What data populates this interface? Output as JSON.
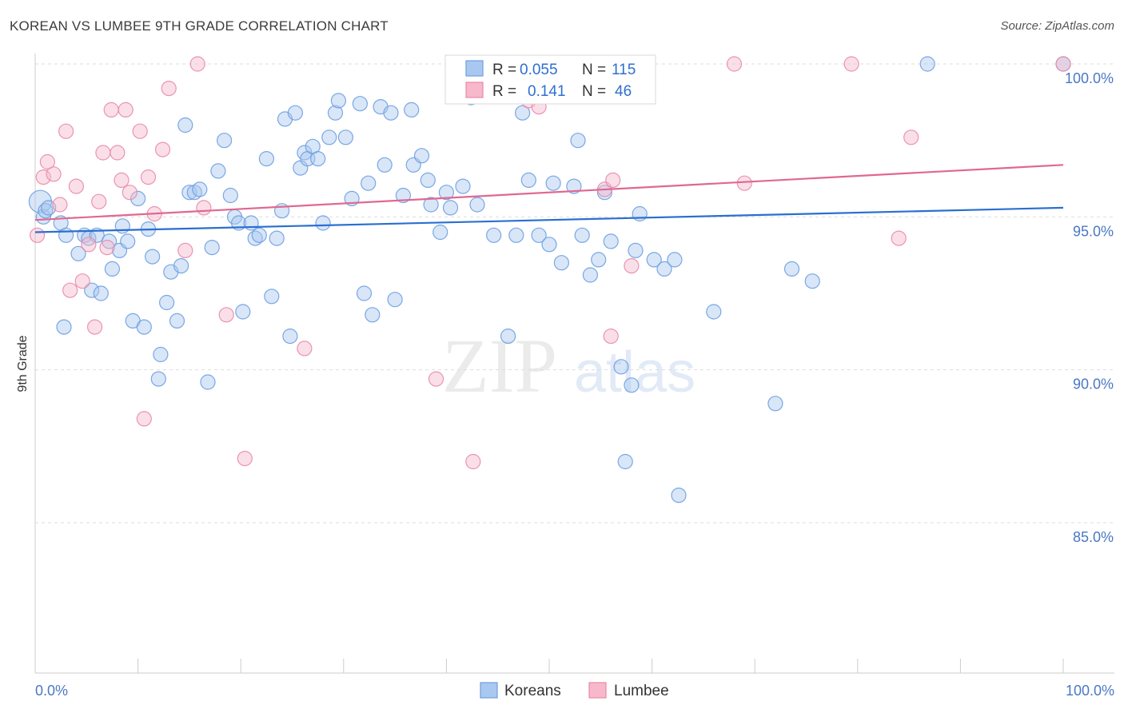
{
  "header": {
    "title": "KOREAN VS LUMBEE 9TH GRADE CORRELATION CHART",
    "source": "Source: ZipAtlas.com"
  },
  "watermark": {
    "zip": "ZIP",
    "atlas": "atlas"
  },
  "colors": {
    "koreans_fill": "#a9c8f0",
    "koreans_stroke": "#6d9ee0",
    "koreans_line": "#2a6fd0",
    "lumbee_fill": "#f7b8cb",
    "lumbee_stroke": "#e88aa8",
    "lumbee_line": "#e06890",
    "tick_color": "#4a78c4",
    "grid": "#dddddd"
  },
  "chart_data": {
    "type": "scatter",
    "title": "KOREAN VS LUMBEE 9TH GRADE CORRELATION CHART",
    "xlabel": "",
    "ylabel": "9th Grade",
    "xlim": [
      0,
      100
    ],
    "ylim": [
      80.5,
      101.2
    ],
    "x_ticks": [
      {
        "value": 0,
        "label": "0.0%"
      },
      {
        "value": 100,
        "label": "100.0%"
      }
    ],
    "y_ticks": [
      {
        "value": 100,
        "label": "100.0%"
      },
      {
        "value": 95,
        "label": "95.0%"
      },
      {
        "value": 90,
        "label": "90.0%"
      },
      {
        "value": 85,
        "label": "85.0%"
      }
    ],
    "grid": true,
    "legend_position": "top-center",
    "stats_legend": [
      {
        "series": "Koreans",
        "r_label": "R =",
        "r_value": "0.055",
        "n_label": "N =",
        "n_value": "115"
      },
      {
        "series": "Lumbee",
        "r_label": "R =",
        "r_value": "0.141",
        "n_label": "N =",
        "n_value": "46"
      }
    ],
    "series": [
      {
        "name": "Koreans",
        "trend": {
          "x": [
            0,
            100
          ],
          "y": [
            94.5,
            95.3
          ]
        },
        "points": [
          [
            0.5,
            95.5
          ],
          [
            0.8,
            95.0
          ],
          [
            1.0,
            95.2
          ],
          [
            1.3,
            95.3
          ],
          [
            2.5,
            94.8
          ],
          [
            2.8,
            91.4
          ],
          [
            3.0,
            94.4
          ],
          [
            4.2,
            93.8
          ],
          [
            4.8,
            94.4
          ],
          [
            5.2,
            94.3
          ],
          [
            5.5,
            92.6
          ],
          [
            6.0,
            94.4
          ],
          [
            6.4,
            92.5
          ],
          [
            7.2,
            94.2
          ],
          [
            7.5,
            93.3
          ],
          [
            8.2,
            93.9
          ],
          [
            8.5,
            94.7
          ],
          [
            9.0,
            94.2
          ],
          [
            9.5,
            91.6
          ],
          [
            10.0,
            95.6
          ],
          [
            10.6,
            91.4
          ],
          [
            11.0,
            94.6
          ],
          [
            11.4,
            93.7
          ],
          [
            12.0,
            89.7
          ],
          [
            12.2,
            90.5
          ],
          [
            12.8,
            92.2
          ],
          [
            13.2,
            93.2
          ],
          [
            13.8,
            91.6
          ],
          [
            14.2,
            93.4
          ],
          [
            14.6,
            98.0
          ],
          [
            15.0,
            95.8
          ],
          [
            15.5,
            95.8
          ],
          [
            16.0,
            95.9
          ],
          [
            16.8,
            89.6
          ],
          [
            17.2,
            94.0
          ],
          [
            17.8,
            96.5
          ],
          [
            18.4,
            97.5
          ],
          [
            19.0,
            95.7
          ],
          [
            19.4,
            95.0
          ],
          [
            19.8,
            94.8
          ],
          [
            20.2,
            91.9
          ],
          [
            21.0,
            94.8
          ],
          [
            21.4,
            94.3
          ],
          [
            21.8,
            94.4
          ],
          [
            22.5,
            96.9
          ],
          [
            23.0,
            92.4
          ],
          [
            23.5,
            94.3
          ],
          [
            24.0,
            95.2
          ],
          [
            24.3,
            98.2
          ],
          [
            24.8,
            91.1
          ],
          [
            25.3,
            98.4
          ],
          [
            25.8,
            96.6
          ],
          [
            26.2,
            97.1
          ],
          [
            26.5,
            96.9
          ],
          [
            27.0,
            97.3
          ],
          [
            27.5,
            96.9
          ],
          [
            28.0,
            94.8
          ],
          [
            28.6,
            97.6
          ],
          [
            29.2,
            98.4
          ],
          [
            29.5,
            98.8
          ],
          [
            30.2,
            97.6
          ],
          [
            30.8,
            95.6
          ],
          [
            31.6,
            98.7
          ],
          [
            32.0,
            92.5
          ],
          [
            32.4,
            96.1
          ],
          [
            32.8,
            91.8
          ],
          [
            33.6,
            98.6
          ],
          [
            34.0,
            96.7
          ],
          [
            34.6,
            98.4
          ],
          [
            35.0,
            92.3
          ],
          [
            35.8,
            95.7
          ],
          [
            36.6,
            98.5
          ],
          [
            36.8,
            96.7
          ],
          [
            37.6,
            97.0
          ],
          [
            38.2,
            96.2
          ],
          [
            38.5,
            95.4
          ],
          [
            39.4,
            94.5
          ],
          [
            40.0,
            95.8
          ],
          [
            40.4,
            95.3
          ],
          [
            41.0,
            100.0
          ],
          [
            41.6,
            96.0
          ],
          [
            42.4,
            98.9
          ],
          [
            43.0,
            95.4
          ],
          [
            44.6,
            94.4
          ],
          [
            46.0,
            91.1
          ],
          [
            46.8,
            94.4
          ],
          [
            47.4,
            98.4
          ],
          [
            48.0,
            96.2
          ],
          [
            49.0,
            94.4
          ],
          [
            50.0,
            94.1
          ],
          [
            50.4,
            96.1
          ],
          [
            51.2,
            93.5
          ],
          [
            52.0,
            100.0
          ],
          [
            52.4,
            96.0
          ],
          [
            52.8,
            97.5
          ],
          [
            53.2,
            94.4
          ],
          [
            54.0,
            93.1
          ],
          [
            54.8,
            93.6
          ],
          [
            55.4,
            95.8
          ],
          [
            56.0,
            94.2
          ],
          [
            57.0,
            90.1
          ],
          [
            57.4,
            87.0
          ],
          [
            58.0,
            89.5
          ],
          [
            58.4,
            93.9
          ],
          [
            58.8,
            95.1
          ],
          [
            60.2,
            93.6
          ],
          [
            61.2,
            93.3
          ],
          [
            62.2,
            93.6
          ],
          [
            62.6,
            85.9
          ],
          [
            66.0,
            91.9
          ],
          [
            72.0,
            88.9
          ],
          [
            73.6,
            93.3
          ],
          [
            75.6,
            92.9
          ],
          [
            86.8,
            100.0
          ],
          [
            100.0,
            100.0
          ]
        ]
      },
      {
        "name": "Lumbee",
        "trend": {
          "x": [
            0,
            100
          ],
          "y": [
            94.9,
            96.7
          ]
        },
        "points": [
          [
            0.2,
            94.4
          ],
          [
            0.8,
            96.3
          ],
          [
            1.2,
            96.8
          ],
          [
            1.8,
            96.4
          ],
          [
            2.4,
            95.4
          ],
          [
            3.0,
            97.8
          ],
          [
            3.4,
            92.6
          ],
          [
            4.0,
            96.0
          ],
          [
            4.6,
            92.9
          ],
          [
            5.2,
            94.1
          ],
          [
            5.8,
            91.4
          ],
          [
            6.2,
            95.5
          ],
          [
            6.6,
            97.1
          ],
          [
            7.0,
            94.0
          ],
          [
            7.4,
            98.5
          ],
          [
            8.0,
            97.1
          ],
          [
            8.4,
            96.2
          ],
          [
            8.8,
            98.5
          ],
          [
            9.2,
            95.8
          ],
          [
            10.2,
            97.8
          ],
          [
            10.6,
            88.4
          ],
          [
            11.0,
            96.3
          ],
          [
            11.6,
            95.1
          ],
          [
            12.4,
            97.2
          ],
          [
            13.0,
            99.2
          ],
          [
            14.6,
            93.9
          ],
          [
            15.8,
            100.0
          ],
          [
            16.4,
            95.3
          ],
          [
            18.6,
            91.8
          ],
          [
            20.4,
            87.1
          ],
          [
            26.2,
            90.7
          ],
          [
            39.0,
            89.7
          ],
          [
            42.6,
            87.0
          ],
          [
            48.0,
            98.8
          ],
          [
            48.4,
            100.0
          ],
          [
            49.0,
            98.6
          ],
          [
            55.4,
            95.9
          ],
          [
            56.0,
            91.1
          ],
          [
            56.2,
            96.2
          ],
          [
            58.0,
            93.4
          ],
          [
            68.0,
            100.0
          ],
          [
            69.0,
            96.1
          ],
          [
            79.4,
            100.0
          ],
          [
            84.0,
            94.3
          ],
          [
            85.2,
            97.6
          ],
          [
            100.0,
            100.0
          ]
        ]
      }
    ],
    "bottom_legend": [
      "Koreans",
      "Lumbee"
    ]
  }
}
